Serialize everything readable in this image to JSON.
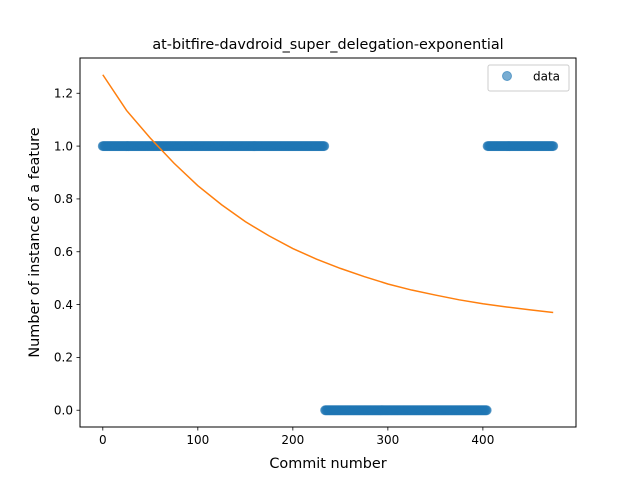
{
  "chart_data": {
    "type": "scatter",
    "title": "at-bitfire-davdroid_super_delegation-exponential",
    "xlabel": "Commit number",
    "ylabel": "Number of instance of a feature",
    "xlim": [
      -24,
      498
    ],
    "ylim": [
      -0.0635,
      1.3335
    ],
    "x_ticks": [
      0,
      100,
      200,
      300,
      400
    ],
    "y_ticks": [
      0.0,
      0.2,
      0.4,
      0.6,
      0.8,
      1.0,
      1.2
    ],
    "grid": false,
    "legend": {
      "position": "top-right",
      "entries": [
        "data"
      ]
    },
    "series": [
      {
        "name": "data",
        "kind": "scatter",
        "color": "#1f77b4",
        "alpha": 0.6,
        "segments": [
          {
            "x_start": 0,
            "x_end": 233,
            "y": 1
          },
          {
            "x_start": 234,
            "x_end": 404,
            "y": 0
          },
          {
            "x_start": 405,
            "x_end": 474,
            "y": 1
          }
        ]
      },
      {
        "kind": "line",
        "color": "#ff7f0e",
        "x": [
          0,
          25,
          50,
          75,
          100,
          125,
          150,
          175,
          200,
          225,
          250,
          275,
          300,
          325,
          350,
          375,
          400,
          425,
          450,
          474
        ],
        "y": [
          1.27,
          1.135,
          1.03,
          0.935,
          0.85,
          0.778,
          0.714,
          0.66,
          0.612,
          0.572,
          0.537,
          0.506,
          0.478,
          0.455,
          0.436,
          0.418,
          0.403,
          0.391,
          0.38,
          0.37
        ]
      }
    ]
  }
}
